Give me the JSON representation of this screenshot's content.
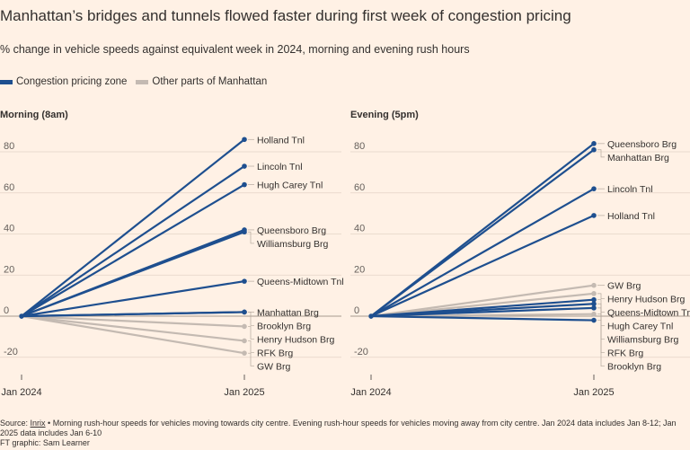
{
  "title": "Manhattan’s bridges and tunnels flowed faster during first week of congestion pricing",
  "subtitle": "% change in vehicle speeds against equivalent week in 2024, morning and evening rush hours",
  "legend": [
    {
      "label": "Congestion pricing zone",
      "color": "#1E4F8F"
    },
    {
      "label": "Other parts of Manhattan",
      "color": "#C4BAB2"
    }
  ],
  "colors": {
    "zone": "#1E4F8F",
    "other": "#C4BAB2",
    "grid": "#E3D4C6",
    "zero": "#A79B90"
  },
  "chart_data": [
    {
      "type": "line",
      "title": "Morning (8am)",
      "x": [
        "Jan 2024",
        "Jan 2025"
      ],
      "ylim": [
        -25,
        90
      ],
      "yticks": [
        -20,
        0,
        20,
        40,
        60,
        80
      ],
      "series": [
        {
          "name": "Holland Tnl",
          "group": "zone",
          "values": [
            0,
            86
          ]
        },
        {
          "name": "Lincoln Tnl",
          "group": "zone",
          "values": [
            0,
            73
          ]
        },
        {
          "name": "Hugh Carey Tnl",
          "group": "zone",
          "values": [
            0,
            64
          ]
        },
        {
          "name": "Queensboro Brg",
          "group": "zone",
          "values": [
            0,
            42
          ]
        },
        {
          "name": "Williamsburg Brg",
          "group": "zone",
          "values": [
            0,
            41
          ]
        },
        {
          "name": "Queens-Midtown Tnl",
          "group": "zone",
          "values": [
            0,
            17
          ]
        },
        {
          "name": "Manhattan Brg",
          "group": "zone",
          "values": [
            0,
            2
          ]
        },
        {
          "name": "Brooklyn Brg",
          "group": "zone",
          "values": [
            0,
            2
          ]
        },
        {
          "name": "Henry Hudson Brg",
          "group": "other",
          "values": [
            0,
            -5
          ]
        },
        {
          "name": "RFK Brg",
          "group": "other",
          "values": [
            0,
            -12
          ]
        },
        {
          "name": "GW Brg",
          "group": "other",
          "values": [
            0,
            -18
          ]
        }
      ]
    },
    {
      "type": "line",
      "title": "Evening (5pm)",
      "x": [
        "Jan 2024",
        "Jan 2025"
      ],
      "ylim": [
        -25,
        90
      ],
      "yticks": [
        -20,
        0,
        20,
        40,
        60,
        80
      ],
      "series": [
        {
          "name": "Queensboro Brg",
          "group": "zone",
          "values": [
            0,
            84
          ]
        },
        {
          "name": "Manhattan Brg",
          "group": "zone",
          "values": [
            0,
            81
          ]
        },
        {
          "name": "Lincoln Tnl",
          "group": "zone",
          "values": [
            0,
            62
          ]
        },
        {
          "name": "Holland Tnl",
          "group": "zone",
          "values": [
            0,
            49
          ]
        },
        {
          "name": "GW Brg",
          "group": "other",
          "values": [
            0,
            15
          ]
        },
        {
          "name": "Henry Hudson Brg",
          "group": "other",
          "values": [
            0,
            11
          ]
        },
        {
          "name": "Queens-Midtown Tnl",
          "group": "zone",
          "values": [
            0,
            8
          ]
        },
        {
          "name": "Hugh Carey Tnl",
          "group": "zone",
          "values": [
            0,
            6
          ]
        },
        {
          "name": "Williamsburg Brg",
          "group": "zone",
          "values": [
            0,
            4
          ]
        },
        {
          "name": "RFK Brg",
          "group": "other",
          "values": [
            0,
            1
          ]
        },
        {
          "name": "Brooklyn Brg",
          "group": "zone",
          "values": [
            0,
            -2
          ]
        }
      ]
    }
  ],
  "footer": {
    "source_prefix": "Source: ",
    "source_link": "Inrix",
    "source_text": " • Morning rush-hour speeds for vehicles moving towards city centre. Evening rush-hour speeds for vehicles moving away from city centre. Jan 2024 data includes Jan 8-12; Jan 2025 data includes Jan 6-10",
    "credit": "FT graphic: Sam Learner"
  }
}
